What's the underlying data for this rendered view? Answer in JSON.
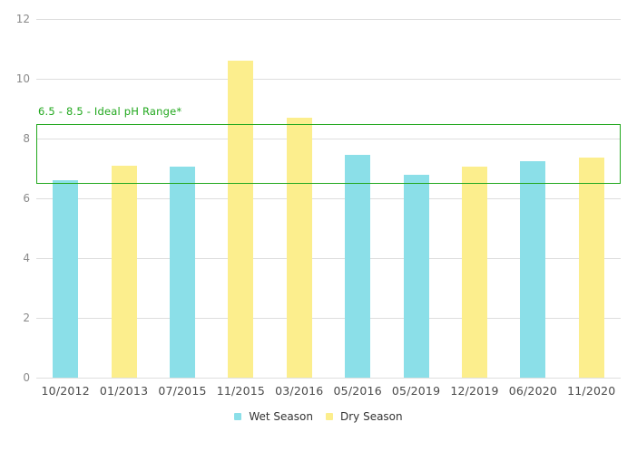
{
  "chart_data": {
    "type": "bar",
    "title": "",
    "xlabel": "",
    "ylabel": "",
    "categories": [
      "10/2012",
      "01/2013",
      "07/2015",
      "11/2015",
      "03/2016",
      "05/2016",
      "05/2019",
      "12/2019",
      "06/2020",
      "11/2020"
    ],
    "series": [
      {
        "name": "Wet Season",
        "color": "#8BDFE8",
        "values": [
          6.6,
          null,
          7.05,
          null,
          null,
          7.45,
          6.8,
          null,
          7.25,
          null
        ]
      },
      {
        "name": "Dry Season",
        "color": "#FCEE8D",
        "values": [
          null,
          7.1,
          null,
          10.6,
          8.7,
          null,
          null,
          7.05,
          null,
          7.35
        ]
      }
    ],
    "ylim": [
      0,
      12
    ],
    "yticks": [
      0,
      2,
      4,
      6,
      8,
      10,
      12
    ],
    "grid": true,
    "legend_position": "bottom",
    "annotation": {
      "label": "6.5 - 8.5 - Ideal pH Range*",
      "y_from": 6.5,
      "y_to": 8.5,
      "color": "#22A81E"
    }
  },
  "colors": {
    "background": "#FFFFFF",
    "gridline": "#DEDEDE",
    "y_tick_text": "#8A8A8A",
    "x_tick_text": "#4A4A4A",
    "legend_text": "#333333",
    "ideal_range_green": "#22A81E"
  }
}
